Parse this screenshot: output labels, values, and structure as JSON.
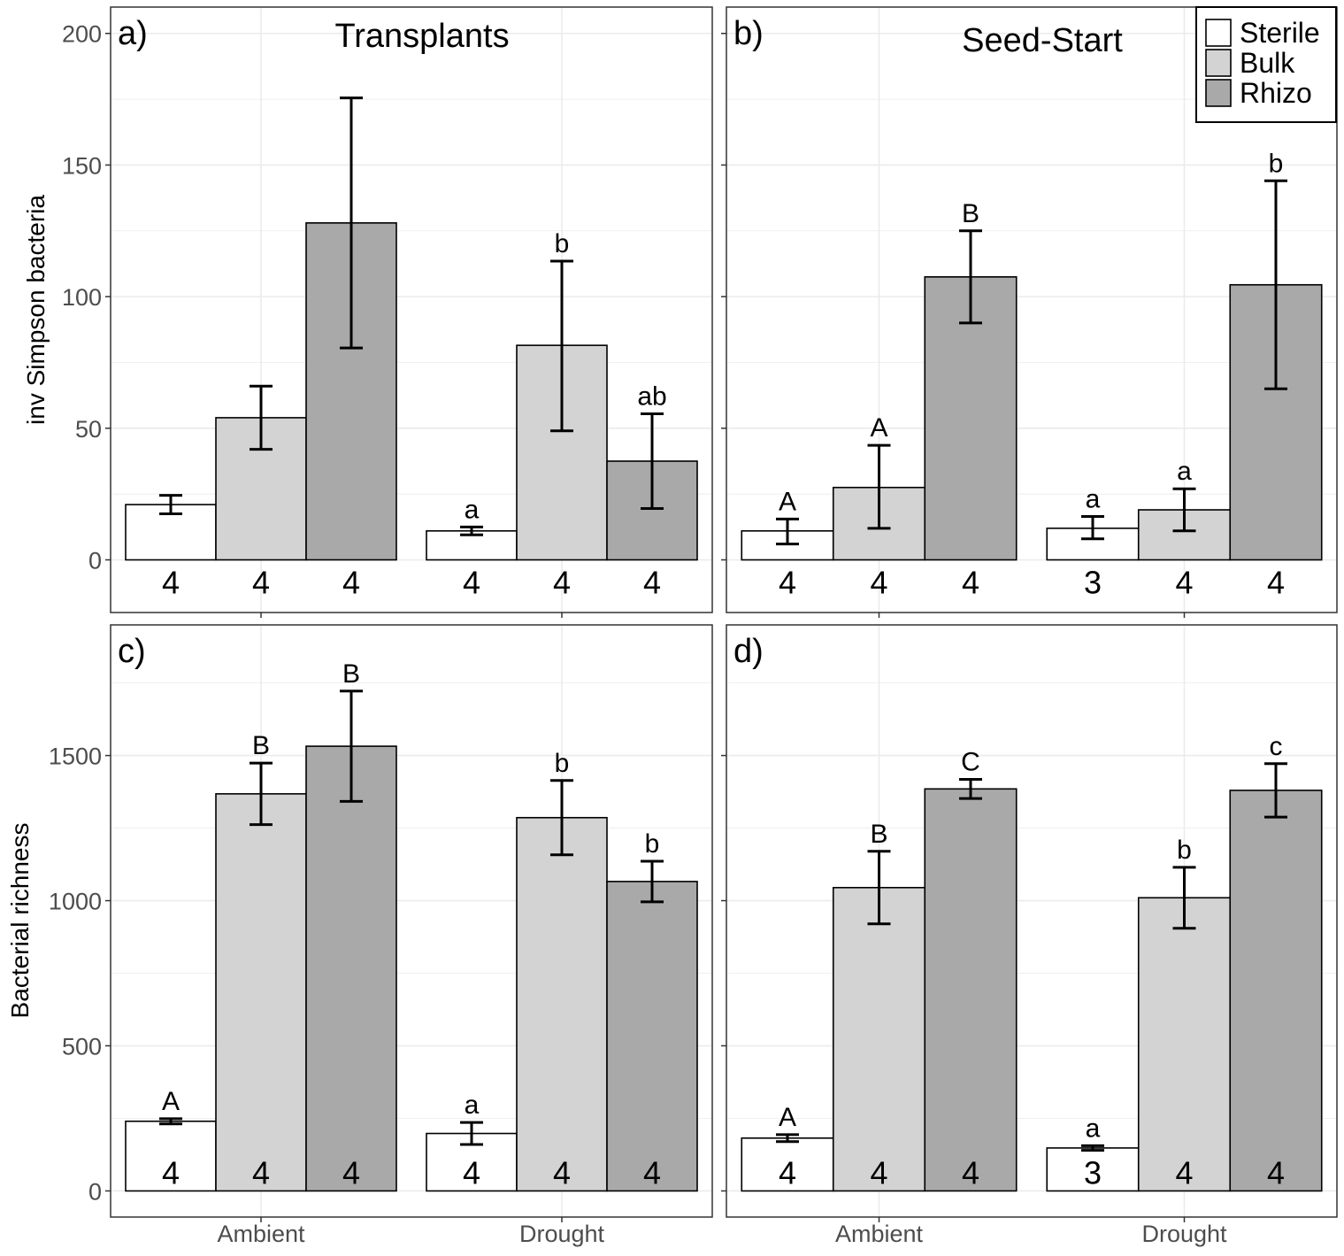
{
  "legend": {
    "items": [
      {
        "label": "Sterile",
        "color": "#ffffff"
      },
      {
        "label": "Bulk",
        "color": "#d3d3d3"
      },
      {
        "label": "Rhizo",
        "color": "#a9a9a9"
      }
    ]
  },
  "axes": {
    "x_ticks": [
      "Ambient",
      "Drought"
    ],
    "y_top_label": "inv Simpson bacteria",
    "y_bottom_label": "Bacterial richness",
    "y_top_ticks": [
      0,
      50,
      100,
      150,
      200
    ],
    "y_bottom_ticks": [
      0,
      500,
      1000,
      1500
    ]
  },
  "chart_data": [
    {
      "type": "bar",
      "panel": "a)",
      "title": "Transplants",
      "ylabel": "inv Simpson bacteria",
      "categories": [
        "Ambient",
        "Drought"
      ],
      "ylim": [
        -20,
        210
      ],
      "series": [
        {
          "name": "Sterile",
          "values": [
            21,
            11
          ],
          "error": [
            [
              17.5,
              24.5
            ],
            [
              9.5,
              12.5
            ]
          ],
          "n": [
            "4",
            "4"
          ],
          "sig": [
            "",
            "a"
          ]
        },
        {
          "name": "Bulk",
          "values": [
            54,
            81.5
          ],
          "error": [
            [
              42,
              66
            ],
            [
              49,
              113.5
            ]
          ],
          "n": [
            "4",
            "4"
          ],
          "sig": [
            "",
            "b"
          ]
        },
        {
          "name": "Rhizo",
          "values": [
            128,
            37.5
          ],
          "error": [
            [
              80.5,
              175.5
            ],
            [
              19.5,
              55.5
            ]
          ],
          "n": [
            "4",
            "4"
          ],
          "sig": [
            "",
            "ab"
          ]
        }
      ]
    },
    {
      "type": "bar",
      "panel": "b)",
      "title": "Seed-Start",
      "ylabel": "",
      "categories": [
        "Ambient",
        "Drought"
      ],
      "ylim": [
        -20,
        210
      ],
      "series": [
        {
          "name": "Sterile",
          "values": [
            11,
            12
          ],
          "error": [
            [
              6,
              15.5
            ],
            [
              8,
              16.5
            ]
          ],
          "n": [
            "4",
            "3"
          ],
          "sig": [
            "A",
            "a"
          ]
        },
        {
          "name": "Bulk",
          "values": [
            27.5,
            19
          ],
          "error": [
            [
              12,
              43.5
            ],
            [
              11,
              27
            ]
          ],
          "n": [
            "4",
            "4"
          ],
          "sig": [
            "A",
            "a"
          ]
        },
        {
          "name": "Rhizo",
          "values": [
            107.5,
            104.5
          ],
          "error": [
            [
              90,
              125
            ],
            [
              65,
              144
            ]
          ],
          "n": [
            "4",
            "4"
          ],
          "sig": [
            "B",
            "b"
          ]
        }
      ]
    },
    {
      "type": "bar",
      "panel": "c)",
      "title": "",
      "ylabel": "Bacterial richness",
      "categories": [
        "Ambient",
        "Drought"
      ],
      "ylim": [
        -90,
        1950
      ],
      "series": [
        {
          "name": "Sterile",
          "values": [
            240,
            198
          ],
          "error": [
            [
              231,
              249
            ],
            [
              160,
              236
            ]
          ],
          "n": [
            "4",
            "4"
          ],
          "sig": [
            "A",
            "a"
          ]
        },
        {
          "name": "Bulk",
          "values": [
            1368,
            1286
          ],
          "error": [
            [
              1262,
              1474
            ],
            [
              1158,
              1414
            ]
          ],
          "n": [
            "4",
            "4"
          ],
          "sig": [
            "B",
            "b"
          ]
        },
        {
          "name": "Rhizo",
          "values": [
            1532,
            1066
          ],
          "error": [
            [
              1342,
              1722
            ],
            [
              996,
              1136
            ]
          ],
          "n": [
            "4",
            "4"
          ],
          "sig": [
            "B",
            "b"
          ]
        }
      ]
    },
    {
      "type": "bar",
      "panel": "d)",
      "title": "",
      "ylabel": "",
      "categories": [
        "Ambient",
        "Drought"
      ],
      "ylim": [
        -90,
        1950
      ],
      "series": [
        {
          "name": "Sterile",
          "values": [
            182,
            148
          ],
          "error": [
            [
              170,
              194
            ],
            [
              140,
              156
            ]
          ],
          "n": [
            "4",
            "3"
          ],
          "sig": [
            "A",
            "a"
          ]
        },
        {
          "name": "Bulk",
          "values": [
            1045,
            1010
          ],
          "error": [
            [
              920,
              1170
            ],
            [
              905,
              1115
            ]
          ],
          "n": [
            "4",
            "4"
          ],
          "sig": [
            "B",
            "b"
          ]
        },
        {
          "name": "Rhizo",
          "values": [
            1385,
            1380
          ],
          "error": [
            [
              1352,
              1418
            ],
            [
              1288,
              1472
            ]
          ],
          "n": [
            "4",
            "4"
          ],
          "sig": [
            "C",
            "c"
          ]
        }
      ]
    }
  ]
}
